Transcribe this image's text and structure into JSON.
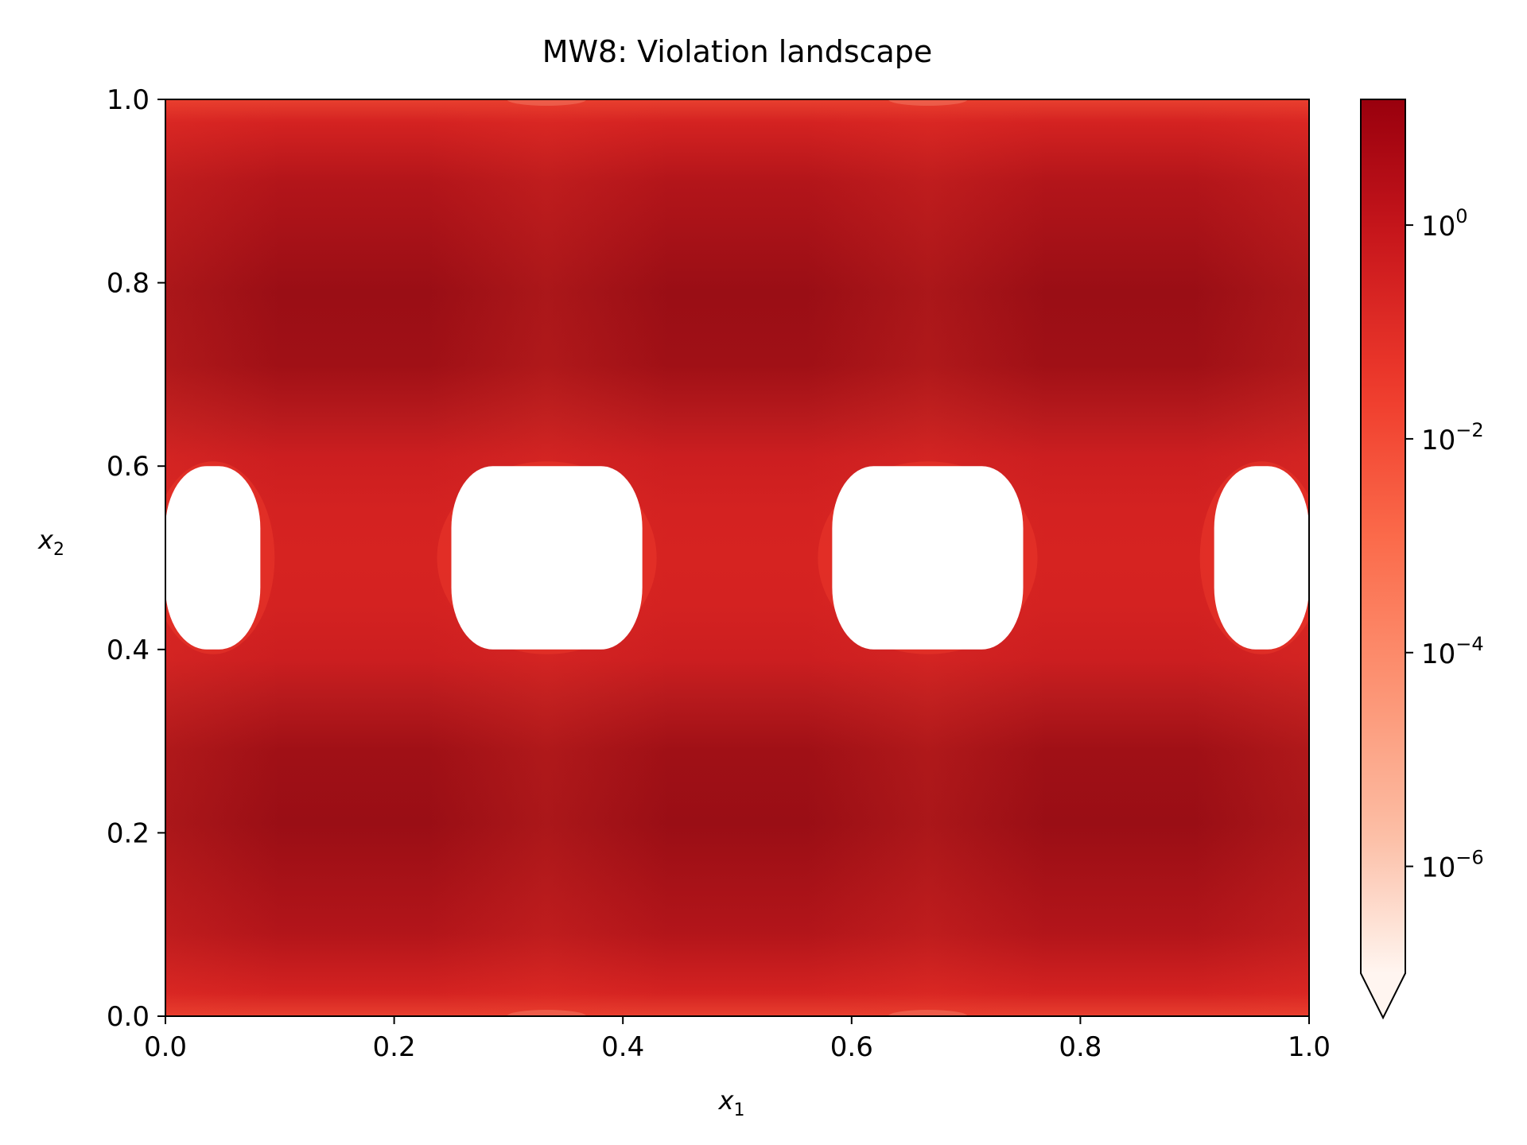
{
  "chart_data": {
    "type": "heatmap",
    "title": "MW8: Violation landscape",
    "xlabel": "x",
    "xlabel_sub": "1",
    "ylabel": "x",
    "ylabel_sub": "2",
    "xlim": [
      0,
      1
    ],
    "ylim": [
      0,
      1
    ],
    "xticks": [
      {
        "value": 0.0,
        "label": "0.0"
      },
      {
        "value": 0.2,
        "label": "0.2"
      },
      {
        "value": 0.4,
        "label": "0.4"
      },
      {
        "value": 0.6,
        "label": "0.6"
      },
      {
        "value": 0.8,
        "label": "0.8"
      },
      {
        "value": 1.0,
        "label": "1.0"
      }
    ],
    "yticks": [
      {
        "value": 0.0,
        "label": "0.0"
      },
      {
        "value": 0.2,
        "label": "0.2"
      },
      {
        "value": 0.4,
        "label": "0.4"
      },
      {
        "value": 0.6,
        "label": "0.6"
      },
      {
        "value": 0.8,
        "label": "0.8"
      },
      {
        "value": 1.0,
        "label": "1.0"
      }
    ],
    "grid": false,
    "colormap": "Reds",
    "feasible_regions_color": "#ffffff",
    "feasible_regions": [
      {
        "x_range": [
          0.0,
          0.083
        ],
        "y_range": [
          0.4,
          0.6
        ]
      },
      {
        "x_range": [
          0.25,
          0.417
        ],
        "y_range": [
          0.4,
          0.6
        ]
      },
      {
        "x_range": [
          0.583,
          0.75
        ],
        "y_range": [
          0.4,
          0.6
        ]
      },
      {
        "x_range": [
          0.917,
          1.0
        ],
        "y_range": [
          0.4,
          0.6
        ]
      }
    ],
    "colorbar": {
      "scale": "log",
      "range": [
        1e-07,
        15
      ],
      "extend": "min",
      "ticks": [
        {
          "value": 1,
          "base": "10",
          "exp": "0"
        },
        {
          "value": 0.01,
          "base": "10",
          "exp": "−2"
        },
        {
          "value": 0.0001,
          "base": "10",
          "exp": "−4"
        },
        {
          "value": 1e-06,
          "base": "10",
          "exp": "−6"
        }
      ],
      "colors": [
        "#fff5f0",
        "#fcbba1",
        "#fc9272",
        "#fb6a4a",
        "#ef3b2c",
        "#cb181d",
        "#99000d"
      ]
    }
  }
}
